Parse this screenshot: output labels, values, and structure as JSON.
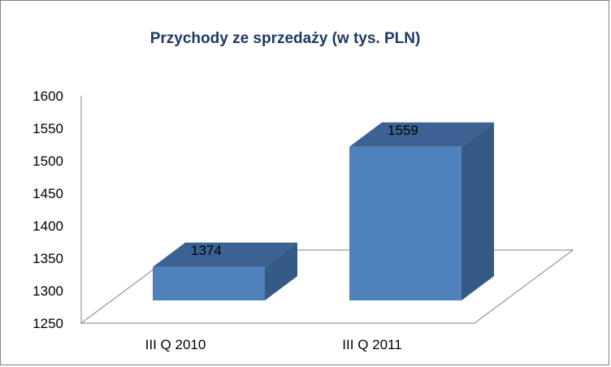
{
  "chart_data": {
    "type": "bar",
    "title": "Przychody ze sprzedaży (w tys. PLN)",
    "categories": [
      "III Q 2010",
      "III Q 2011"
    ],
    "values": [
      1374,
      1559
    ],
    "data_labels": [
      "1374",
      "1559"
    ],
    "ylim": [
      1250,
      1600
    ],
    "yticks": [
      "1250",
      "1300",
      "1350",
      "1400",
      "1450",
      "1500",
      "1550",
      "1600"
    ],
    "grid": false,
    "legend": "none",
    "colors": {
      "bar_front": "#4f81bd",
      "bar_top": "#3c6294",
      "bar_side": "#345a86",
      "floor_stroke": "#808080"
    }
  }
}
